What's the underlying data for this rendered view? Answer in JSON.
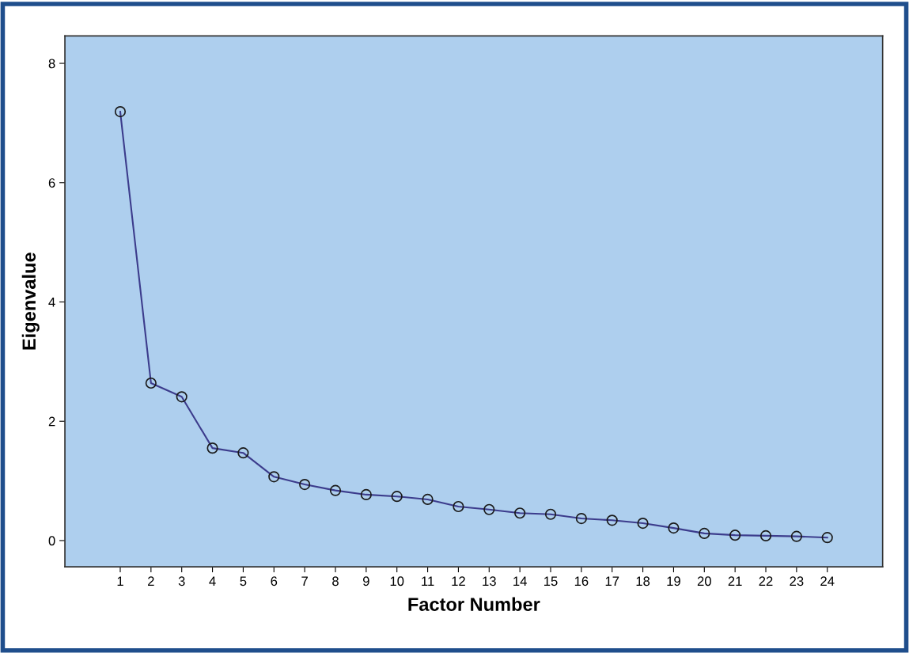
{
  "chart_data": {
    "type": "line",
    "xlabel": "Factor Number",
    "ylabel": "Eigenvalue",
    "x": [
      1,
      2,
      3,
      4,
      5,
      6,
      7,
      8,
      9,
      10,
      11,
      12,
      13,
      14,
      15,
      16,
      17,
      18,
      19,
      20,
      21,
      22,
      23,
      24
    ],
    "series": [
      {
        "color": "#3c3c8c",
        "values": [
          7.19,
          2.64,
          2.41,
          1.55,
          1.47,
          1.07,
          0.94,
          0.84,
          0.77,
          0.74,
          0.69,
          0.57,
          0.52,
          0.46,
          0.44,
          0.37,
          0.34,
          0.29,
          0.21,
          0.12,
          0.09,
          0.08,
          0.07,
          0.05
        ]
      }
    ],
    "xlim": [
      -0.8,
      25.8
    ],
    "xticks": [
      1,
      2,
      3,
      4,
      5,
      6,
      7,
      8,
      9,
      10,
      11,
      12,
      13,
      14,
      15,
      16,
      17,
      18,
      19,
      20,
      21,
      22,
      23,
      24
    ],
    "ylim": [
      -0.44,
      8.46
    ],
    "yticks": [
      0,
      2,
      4,
      6,
      8
    ],
    "grid": false,
    "marker": "circle",
    "line_style": "solid"
  }
}
